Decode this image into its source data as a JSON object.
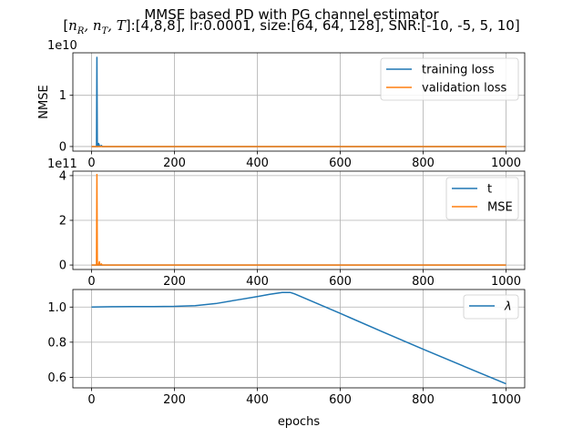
{
  "figure": {
    "title_line1": "MMSE based PD with PG channel estimator",
    "title_line2_prefix": "[",
    "title_line2_math": "nR, nT, T",
    "title_line2_suffix": "]:[4,8,8], lr:0.0001, size:[64, 64, 128], SNR:[-10, -5, 5, 10]"
  },
  "colors": {
    "blue": "#1f77b4",
    "orange": "#ff7f0e",
    "grid": "#b0b0b0"
  },
  "chart_data": [
    {
      "type": "line",
      "title": "",
      "xlabel": "",
      "ylabel": "NMSE",
      "offset_text": "1e10",
      "xlim": [
        -45,
        1045
      ],
      "ylim": [
        -0.09,
        1.83
      ],
      "xticks": [
        0,
        200,
        400,
        600,
        800,
        1000
      ],
      "yticks": [
        0,
        1
      ],
      "ytick_labels": [
        "0",
        "1"
      ],
      "grid": true,
      "legend_position": "upper right",
      "series": [
        {
          "name": "training loss",
          "color": "#1f77b4",
          "x": [
            0,
            10,
            12,
            13,
            14,
            16,
            17,
            19,
            20,
            22,
            24,
            26,
            1000
          ],
          "y": [
            0,
            0,
            0,
            1.74,
            0,
            0,
            0.06,
            0.02,
            0,
            0.01,
            0.02,
            0,
            0
          ]
        },
        {
          "name": "validation loss",
          "color": "#ff7f0e",
          "x": [
            0,
            1000
          ],
          "y": [
            0,
            0
          ]
        }
      ]
    },
    {
      "type": "line",
      "title": "",
      "xlabel": "",
      "ylabel": "",
      "offset_text": "1e11",
      "xlim": [
        -45,
        1045
      ],
      "ylim": [
        -0.2,
        4.2
      ],
      "xticks": [
        0,
        200,
        400,
        600,
        800,
        1000
      ],
      "yticks": [
        0,
        2,
        4
      ],
      "ytick_labels": [
        "0",
        "2",
        "4"
      ],
      "grid": true,
      "legend_position": "upper right",
      "series": [
        {
          "name": "t",
          "color": "#1f77b4",
          "x": [
            0,
            1000
          ],
          "y": [
            0,
            0
          ]
        },
        {
          "name": "MSE",
          "color": "#ff7f0e",
          "x": [
            0,
            10,
            12,
            13,
            14,
            16,
            17,
            19,
            20,
            22,
            24,
            25,
            1000
          ],
          "y": [
            0,
            0,
            0,
            4.05,
            0,
            0,
            0,
            0.15,
            0,
            0.02,
            0.05,
            0,
            0
          ]
        }
      ]
    },
    {
      "type": "line",
      "title": "",
      "xlabel": "epochs",
      "ylabel": "",
      "offset_text": "",
      "xlim": [
        -45,
        1045
      ],
      "ylim": [
        0.54,
        1.1
      ],
      "xticks": [
        0,
        200,
        400,
        600,
        800,
        1000
      ],
      "yticks": [
        0.6,
        0.8,
        1.0
      ],
      "ytick_labels": [
        "0.6",
        "0.8",
        "1.0"
      ],
      "grid": true,
      "legend_position": "upper right",
      "series": [
        {
          "name": "λ",
          "color": "#1f77b4",
          "x": [
            0,
            50,
            100,
            150,
            200,
            250,
            300,
            350,
            400,
            430,
            460,
            480,
            490,
            600,
            700,
            800,
            900,
            1000
          ],
          "y": [
            1.0,
            1.002,
            1.003,
            1.003,
            1.004,
            1.008,
            1.02,
            1.04,
            1.06,
            1.073,
            1.083,
            1.083,
            1.075,
            0.964,
            0.861,
            0.76,
            0.661,
            0.563
          ]
        }
      ]
    }
  ]
}
